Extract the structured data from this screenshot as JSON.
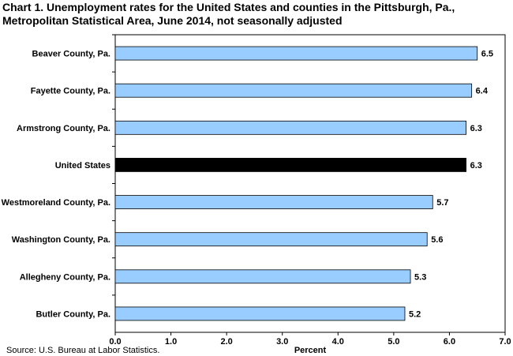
{
  "title": "Chart 1. Unemployment rates for the United States and counties in the Pittsburgh, Pa., Metropolitan Statistical Area, June 2014, not seasonally adjusted",
  "source": "Source: U.S. Bureau at Labor Statistics.",
  "chart_data": {
    "type": "bar",
    "orientation": "horizontal",
    "categories": [
      "Beaver County, Pa.",
      "Fayette County, Pa.",
      "Armstrong County, Pa.",
      "United States",
      "Westmoreland County, Pa.",
      "Washington County, Pa.",
      "Allegheny County, Pa.",
      "Butler County, Pa."
    ],
    "values": [
      6.5,
      6.4,
      6.3,
      6.3,
      5.7,
      5.6,
      5.3,
      5.2
    ],
    "value_labels": [
      "6.5",
      "6.4",
      "6.3",
      "6.3",
      "5.7",
      "5.6",
      "5.3",
      "5.2"
    ],
    "highlight_category": "United States",
    "xlabel": "Percent",
    "xlim": [
      0,
      7
    ],
    "xticks": [
      "0.0",
      "1.0",
      "2.0",
      "3.0",
      "4.0",
      "5.0",
      "6.0",
      "7.0"
    ],
    "grid": false,
    "colors": {
      "bar": "#99ccff",
      "highlight": "#000000",
      "edge": "#000000"
    }
  }
}
